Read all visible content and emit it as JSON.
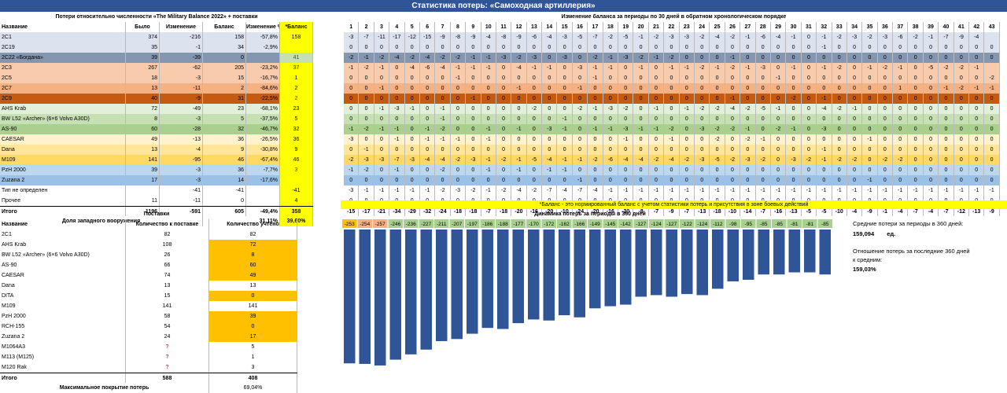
{
  "title": "Статистика потерь: «Самоходная артиллерия»",
  "left": {
    "caption": "Потери относительно численности «The Military Balance 2022» + поставки",
    "headers": [
      "Название",
      "Было",
      "Изменение",
      "Баланс",
      "Изменение %",
      "*Баланс"
    ],
    "rows": [
      {
        "name": "2С1",
        "was": "374",
        "chg": "-216",
        "bal": "158",
        "pct": "-57,8%",
        "nb": "158",
        "bg": "#dce3ef"
      },
      {
        "name": "2С19",
        "was": "35",
        "chg": "-1",
        "bal": "34",
        "pct": "-2,9%",
        "nb": "",
        "bg": "#dce3ef"
      },
      {
        "name": "2С22 «Богдана»",
        "was": "39",
        "chg": "-39",
        "bal": "0",
        "pct": "",
        "nb": "41",
        "bg": "#8496b0"
      },
      {
        "name": "2С3",
        "was": "267",
        "chg": "-62",
        "bal": "205",
        "pct": "-23,2%",
        "nb": "37",
        "bg": "#f8cbad"
      },
      {
        "name": "2С5",
        "was": "18",
        "chg": "-3",
        "bal": "15",
        "pct": "-16,7%",
        "nb": "1",
        "bg": "#f8cbad"
      },
      {
        "name": "2С7",
        "was": "13",
        "chg": "-11",
        "bal": "2",
        "pct": "-84,6%",
        "nb": "2",
        "bg": "#f4b183"
      },
      {
        "name": "2С9",
        "was": "40",
        "chg": "-9",
        "bal": "31",
        "pct": "-22,5%",
        "nb": "2",
        "bg": "#c55a11"
      },
      {
        "name": "AHS Krab",
        "was": "72",
        "chg": "-49",
        "bal": "23",
        "pct": "-68,1%",
        "nb": "23",
        "bg": "#e2efd9"
      },
      {
        "name": "BW L52 «Archer» (6×6 Volvo A30D)",
        "was": "8",
        "chg": "-3",
        "bal": "5",
        "pct": "-37,5%",
        "nb": "5",
        "bg": "#c6e0b4"
      },
      {
        "name": "AS-90",
        "was": "60",
        "chg": "-28",
        "bal": "32",
        "pct": "-46,7%",
        "nb": "32",
        "bg": "#a9d08e"
      },
      {
        "name": "CAESAR",
        "was": "49",
        "chg": "-13",
        "bal": "36",
        "pct": "-26,5%",
        "nb": "36",
        "bg": "#fff2cc"
      },
      {
        "name": "Dana",
        "was": "13",
        "chg": "-4",
        "bal": "9",
        "pct": "-30,8%",
        "nb": "9",
        "bg": "#ffe699"
      },
      {
        "name": "M109",
        "was": "141",
        "chg": "-95",
        "bal": "46",
        "pct": "-67,4%",
        "nb": "46",
        "bg": "#ffd966"
      },
      {
        "name": "PzH 2000",
        "was": "39",
        "chg": "-3",
        "bal": "36",
        "pct": "-7,7%",
        "nb": "3",
        "bg": "#bdd7ee"
      },
      {
        "name": "Zuzana 2",
        "was": "17",
        "chg": "-3",
        "bal": "14",
        "pct": "-17,6%",
        "nb": "",
        "bg": "#9bc2e6"
      },
      {
        "name": "Тип не определен",
        "was": "",
        "chg": "-41",
        "bal": "-41",
        "pct": "",
        "nb": "-41",
        "bg": "#ffffff"
      },
      {
        "name": "Прочее",
        "was": "11",
        "chg": "-11",
        "bal": "0",
        "pct": "",
        "nb": "4",
        "bg": "#ffffff"
      }
    ],
    "total": {
      "name": "Итого",
      "was": "1196",
      "chg": "-591",
      "bal": "605",
      "pct": "-49,4%",
      "nb": "358"
    },
    "western_label": "Доля западного вооружения",
    "western_value": "31,11%",
    "western_nb": "39,60%"
  },
  "periods": {
    "caption": "Изменение баланса за периоды по 30 дней в обратном хронологическом порядке",
    "numbers": [
      "1",
      "2",
      "3",
      "4",
      "5",
      "6",
      "7",
      "8",
      "9",
      "10",
      "11",
      "12",
      "13",
      "14",
      "15",
      "16",
      "17",
      "18",
      "19",
      "20",
      "21",
      "22",
      "23",
      "24",
      "25",
      "26",
      "27",
      "28",
      "29",
      "30",
      "31",
      "32",
      "33",
      "34",
      "35",
      "36",
      "37",
      "38",
      "39",
      "40",
      "41",
      "42",
      "43"
    ],
    "rows": [
      [
        "-3",
        "-7",
        "-11",
        "-17",
        "-12",
        "-15",
        "-9",
        "-8",
        "-9",
        "-4",
        "-8",
        "-9",
        "-6",
        "-4",
        "-3",
        "-5",
        "-7",
        "-2",
        "-5",
        "-1",
        "-2",
        "-3",
        "-3",
        "-2",
        "-4",
        "-2",
        "-1",
        "-6",
        "-4",
        "-1",
        "0",
        "-1",
        "-2",
        "-3",
        "-2",
        "-3",
        "-6",
        "-2",
        "-1",
        "-7",
        "-9",
        "-4"
      ],
      [
        "0",
        "0",
        "0",
        "0",
        "0",
        "0",
        "0",
        "0",
        "0",
        "0",
        "0",
        "0",
        "0",
        "0",
        "0",
        "0",
        "0",
        "0",
        "0",
        "0",
        "0",
        "0",
        "0",
        "0",
        "0",
        "0",
        "0",
        "0",
        "0",
        "0",
        "0",
        "-1",
        "0",
        "0",
        "0",
        "0",
        "0",
        "0",
        "0",
        "0",
        "0",
        "0",
        "0"
      ],
      [
        "-2",
        "-1",
        "-2",
        "-4",
        "-2",
        "-4",
        "-2",
        "-2",
        "-1",
        "-1",
        "-3",
        "-2",
        "-3",
        "0",
        "-3",
        "0",
        "-2",
        "-1",
        "-3",
        "-2",
        "-1",
        "-2",
        "0",
        "0",
        "0",
        "-1",
        "0",
        "0",
        "0",
        "0",
        "0",
        "0",
        "0",
        "0",
        "0",
        "0",
        "0",
        "0",
        "0",
        "0",
        "0",
        "0",
        "0"
      ],
      [
        "-1",
        "-2",
        "-1",
        "0",
        "-4",
        "-6",
        "-4",
        "-1",
        "-1",
        "-1",
        "0",
        "-4",
        "-1",
        "-1",
        "0",
        "-3",
        "-1",
        "-1",
        "0",
        "-1",
        "0",
        "-1",
        "-1",
        "-2",
        "-1",
        "-2",
        "-1",
        "-3",
        "0",
        "-1",
        "0",
        "-1",
        "-2",
        "0",
        "-1",
        "-2",
        "-1",
        "0",
        "-5",
        "-2",
        "-2",
        "-1"
      ],
      [
        "0",
        "0",
        "0",
        "0",
        "0",
        "0",
        "0",
        "-1",
        "0",
        "0",
        "0",
        "0",
        "0",
        "0",
        "0",
        "0",
        "-1",
        "0",
        "0",
        "0",
        "0",
        "0",
        "0",
        "0",
        "0",
        "0",
        "0",
        "0",
        "-1",
        "0",
        "0",
        "0",
        "0",
        "0",
        "0",
        "0",
        "0",
        "0",
        "0",
        "0",
        "0",
        "0",
        "-2"
      ],
      [
        "0",
        "0",
        "-1",
        "0",
        "0",
        "0",
        "0",
        "0",
        "0",
        "0",
        "0",
        "-1",
        "0",
        "0",
        "0",
        "-1",
        "0",
        "0",
        "0",
        "0",
        "0",
        "0",
        "0",
        "0",
        "0",
        "0",
        "0",
        "0",
        "0",
        "0",
        "0",
        "0",
        "0",
        "0",
        "0",
        "0",
        "1",
        "0",
        "0",
        "-1",
        "-2",
        "-1",
        "-1"
      ],
      [
        "0",
        "0",
        "0",
        "0",
        "0",
        "0",
        "0",
        "0",
        "-1",
        "0",
        "0",
        "0",
        "0",
        "0",
        "0",
        "0",
        "0",
        "0",
        "0",
        "0",
        "0",
        "0",
        "0",
        "0",
        "0",
        "-1",
        "0",
        "0",
        "0",
        "-2",
        "0",
        "-1",
        "0",
        "0",
        "0",
        "0",
        "0",
        "0",
        "0",
        "0",
        "0",
        "0",
        "0"
      ],
      [
        "0",
        "0",
        "-1",
        "-3",
        "-1",
        "0",
        "-1",
        "0",
        "0",
        "0",
        "0",
        "0",
        "-2",
        "0",
        "0",
        "-2",
        "-1",
        "-3",
        "-2",
        "0",
        "-1",
        "0",
        "-1",
        "-2",
        "-2",
        "-4",
        "-2",
        "-5",
        "-1",
        "0",
        "0",
        "-4",
        "-2",
        "-1",
        "0",
        "0",
        "0",
        "0",
        "0",
        "0",
        "0",
        "0",
        "0"
      ],
      [
        "0",
        "0",
        "0",
        "0",
        "0",
        "0",
        "-1",
        "0",
        "0",
        "0",
        "0",
        "0",
        "0",
        "0",
        "-1",
        "0",
        "0",
        "0",
        "0",
        "0",
        "0",
        "0",
        "0",
        "0",
        "0",
        "0",
        "0",
        "0",
        "0",
        "0",
        "0",
        "0",
        "0",
        "0",
        "0",
        "0",
        "0",
        "0",
        "0",
        "0",
        "0",
        "0",
        "0"
      ],
      [
        "-1",
        "-2",
        "-1",
        "-1",
        "0",
        "-1",
        "-2",
        "0",
        "0",
        "-1",
        "0",
        "-1",
        "0",
        "-3",
        "-1",
        "0",
        "-1",
        "-1",
        "-3",
        "-1",
        "-1",
        "-2",
        "0",
        "-3",
        "-2",
        "-2",
        "-1",
        "0",
        "-2",
        "-1",
        "0",
        "-3",
        "0",
        "0",
        "0",
        "0",
        "0",
        "0",
        "0",
        "0",
        "0",
        "0",
        "0"
      ],
      [
        "-3",
        "0",
        "0",
        "-1",
        "0",
        "-1",
        "-1",
        "-1",
        "0",
        "-1",
        "0",
        "0",
        "0",
        "0",
        "0",
        "0",
        "0",
        "0",
        "-1",
        "0",
        "0",
        "-1",
        "0",
        "0",
        "-2",
        "0",
        "-2",
        "-1",
        "0",
        "0",
        "0",
        "0",
        "0",
        "0",
        "-1",
        "0",
        "0",
        "0",
        "0",
        "0",
        "0",
        "0",
        "0"
      ],
      [
        "0",
        "-1",
        "0",
        "0",
        "0",
        "0",
        "0",
        "0",
        "0",
        "0",
        "0",
        "0",
        "0",
        "0",
        "0",
        "0",
        "0",
        "0",
        "0",
        "0",
        "0",
        "0",
        "0",
        "0",
        "0",
        "0",
        "0",
        "0",
        "0",
        "0",
        "0",
        "-1",
        "0",
        "0",
        "0",
        "0",
        "0",
        "0",
        "0",
        "0",
        "0",
        "0",
        "0"
      ],
      [
        "-2",
        "-3",
        "-3",
        "-7",
        "-3",
        "-4",
        "-4",
        "-2",
        "-3",
        "-1",
        "-2",
        "-1",
        "-5",
        "-4",
        "-1",
        "-1",
        "-2",
        "-6",
        "-4",
        "-4",
        "-2",
        "-4",
        "-2",
        "-3",
        "-5",
        "-2",
        "-3",
        "-2",
        "0",
        "-3",
        "-2",
        "-1",
        "-2",
        "-2",
        "0",
        "-2",
        "-2",
        "0",
        "0",
        "0",
        "0",
        "0",
        "0"
      ],
      [
        "-1",
        "-2",
        "0",
        "-1",
        "0",
        "0",
        "-2",
        "0",
        "0",
        "-1",
        "0",
        "-1",
        "0",
        "-1",
        "-1",
        "0",
        "0",
        "0",
        "0",
        "0",
        "0",
        "0",
        "0",
        "0",
        "0",
        "0",
        "0",
        "0",
        "0",
        "0",
        "0",
        "0",
        "0",
        "0",
        "0",
        "0",
        "0",
        "0",
        "0",
        "0",
        "0",
        "0",
        "0"
      ],
      [
        "0",
        "0",
        "0",
        "0",
        "0",
        "0",
        "0",
        "0",
        "0",
        "0",
        "0",
        "0",
        "0",
        "0",
        "0",
        "-1",
        "0",
        "0",
        "0",
        "0",
        "0",
        "0",
        "0",
        "0",
        "0",
        "0",
        "0",
        "0",
        "0",
        "0",
        "0",
        "0",
        "0",
        "0",
        "-1",
        "0",
        "0",
        "0",
        "0",
        "0",
        "0",
        "0",
        "0"
      ],
      [
        "-3",
        "-1",
        "-1",
        "-1",
        "-1",
        "-1",
        "-2",
        "-3",
        "-2",
        "-1",
        "-2",
        "-4",
        "-2",
        "-7",
        "-4",
        "-7",
        "-4",
        "-1",
        "-1",
        "-1",
        "-1",
        "-1",
        "-1",
        "-1",
        "-1",
        "-1",
        "-1",
        "-1",
        "-1",
        "-1",
        "-1",
        "-1",
        "-1",
        "-1",
        "-1",
        "-1",
        "-1",
        "-1",
        "-1",
        "-1",
        "-1",
        "-1",
        "-1"
      ],
      [
        "0",
        "0",
        "0",
        "0",
        "0",
        "0",
        "0",
        "0",
        "0",
        "0",
        "0",
        "0",
        "0",
        "0",
        "0",
        "0",
        "0",
        "0",
        "0",
        "0",
        "0",
        "0",
        "0",
        "0",
        "0",
        "0",
        "0",
        "0",
        "0",
        "0",
        "0",
        "0",
        "0",
        "0",
        "0",
        "0",
        "0",
        "0",
        "0",
        "0",
        "0",
        "0",
        "0"
      ]
    ],
    "totals": [
      "-15",
      "-17",
      "-21",
      "-34",
      "-29",
      "-32",
      "-24",
      "-18",
      "-18",
      "-7",
      "-18",
      "-20",
      "-16",
      "-20",
      "-10",
      "-24",
      "-20",
      "-16",
      "-20",
      "-8",
      "-7",
      "-9",
      "-7",
      "-13",
      "-18",
      "-10",
      "-14",
      "-7",
      "-16",
      "-13",
      "-5",
      "-5",
      "-10",
      "-4",
      "-9",
      "-1",
      "-4",
      "-7",
      "-4",
      "-7",
      "-12",
      "-13",
      "-9"
    ],
    "note": "*Баланс - это нормированный баланс с учетом статистики потерь и присутствия в зоне боевых действий"
  },
  "deliveries": {
    "caption": "Поставки",
    "headers": [
      "Название",
      "Количество к поставке",
      "Количество учтено"
    ],
    "rows": [
      {
        "name": "2С1",
        "qty": "82",
        "acc": "82",
        "hl": false
      },
      {
        "name": "AHS Krab",
        "qty": "108",
        "acc": "72",
        "hl": true
      },
      {
        "name": "BW L52 «Archer» (6×6 Volvo A30D)",
        "qty": "26",
        "acc": "8",
        "hl": true
      },
      {
        "name": "AS-90",
        "qty": "66",
        "acc": "60",
        "hl": true
      },
      {
        "name": "CAESAR",
        "qty": "74",
        "acc": "49",
        "hl": true
      },
      {
        "name": "Dana",
        "qty": "13",
        "acc": "13",
        "hl": false
      },
      {
        "name": "DITA",
        "qty": "15",
        "acc": "0",
        "hl": true
      },
      {
        "name": "M109",
        "qty": "141",
        "acc": "141",
        "hl": false
      },
      {
        "name": "PzH 2000",
        "qty": "58",
        "acc": "39",
        "hl": true
      },
      {
        "name": "RCH-155",
        "qty": "54",
        "acc": "0",
        "hl": true
      },
      {
        "name": "Zuzana 2",
        "qty": "24",
        "acc": "17",
        "hl": true
      },
      {
        "name": "M1064A3",
        "qty": "?",
        "acc": "5",
        "hl": false
      },
      {
        "name": "M113 (M125)",
        "qty": "?",
        "acc": "1",
        "hl": false
      },
      {
        "name": "M120 Rak",
        "qty": "?",
        "acc": "3",
        "hl": false
      }
    ],
    "total": {
      "name": "Итого",
      "qty": "588",
      "acc": "408"
    },
    "coverage_label": "Максимальное покрытие потерь",
    "coverage_value": "69,04%"
  },
  "chart_data": {
    "type": "bar",
    "title": "Динамика потерь за периоды в 360 дней",
    "values": [
      -253,
      -254,
      -257,
      -246,
      -236,
      -227,
      -211,
      -207,
      -197,
      -186,
      -188,
      -177,
      -170,
      -172,
      -162,
      -166,
      -149,
      -145,
      -142,
      -127,
      -124,
      -127,
      -122,
      -124,
      -112,
      -98,
      -95,
      -85,
      -85,
      -81,
      -81,
      -85
    ],
    "label_colors": [
      "#ffc000",
      "#f4b183",
      "#f4b183",
      "#a9d08e",
      "#a9d08e",
      "#a9d08e",
      "#a9d08e",
      "#a9d08e",
      "#a9d08e",
      "#a9d08e",
      "#a9d08e",
      "#a9d08e",
      "#a9d08e",
      "#a9d08e",
      "#a9d08e",
      "#a9d08e",
      "#a9d08e",
      "#a9d08e",
      "#a9d08e",
      "#a9d08e",
      "#a9d08e",
      "#a9d08e",
      "#a9d08e",
      "#a9d08e",
      "#a9d08e",
      "#a9d08e",
      "#a9d08e",
      "#a9d08e",
      "#a9d08e",
      "#a9d08e",
      "#a9d08e",
      "#a9d08e"
    ],
    "bar_color": "#2f5597",
    "ylim": [
      -260,
      0
    ]
  },
  "stats": {
    "avg_label": "Средние потери за периоды в 360 дней:",
    "avg_value": "159,094",
    "avg_unit": "ед.",
    "ratio_label1": "Отношение потерь за последние 360 дней",
    "ratio_label2": "к средним:",
    "ratio_value": "159,03%"
  },
  "colors": {
    "title_bg": "#2f5597",
    "yellow": "#ffff00",
    "orange": "#ffc000",
    "note_bg": "#ffff00"
  }
}
